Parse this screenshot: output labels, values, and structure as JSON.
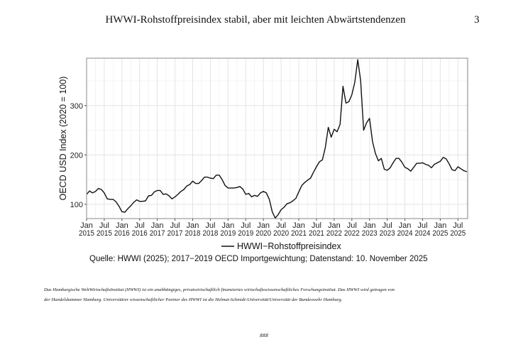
{
  "header": {
    "title": "HWWI-Rohstoffpreisindex stabil, aber mit leichten Abwärtstendenzen",
    "page_number": "3"
  },
  "chart_data": {
    "type": "line",
    "title": "",
    "xlabel": "",
    "ylabel": "OECD USD Index (2020 = 100)",
    "ylim": [
      71,
      396
    ],
    "yticks": [
      100,
      200,
      300
    ],
    "grid": true,
    "start": "Jan 2015",
    "frequency": "monthly",
    "x_tick_labels": [
      [
        "Jan",
        "2015"
      ],
      [
        "Jul",
        "2015"
      ],
      [
        "Jan",
        "2016"
      ],
      [
        "Jul",
        "2016"
      ],
      [
        "Jan",
        "2017"
      ],
      [
        "Jul",
        "2017"
      ],
      [
        "Jan",
        "2018"
      ],
      [
        "Jul",
        "2018"
      ],
      [
        "Jan",
        "2019"
      ],
      [
        "Jul",
        "2019"
      ],
      [
        "Jan",
        "2020"
      ],
      [
        "Jul",
        "2020"
      ],
      [
        "Jan",
        "2021"
      ],
      [
        "Jul",
        "2021"
      ],
      [
        "Jan",
        "2022"
      ],
      [
        "Jul",
        "2022"
      ],
      [
        "Jan",
        "2023"
      ],
      [
        "Jul",
        "2023"
      ],
      [
        "Jan",
        "2024"
      ],
      [
        "Jul",
        "2024"
      ],
      [
        "Jan",
        "2025"
      ],
      [
        "Jul",
        "2025"
      ]
    ],
    "legend": {
      "position": "bottom",
      "entries": [
        "HWWI−Rohstoffpreisindex"
      ]
    },
    "series": [
      {
        "name": "HWWI−Rohstoffpreisindex",
        "color": "#111111",
        "values": [
          120,
          127,
          123,
          126,
          132,
          130,
          123,
          111,
          110,
          110,
          105,
          96,
          85,
          84,
          91,
          97,
          104,
          109,
          106,
          106,
          107,
          117,
          118,
          125,
          128,
          128,
          120,
          121,
          117,
          111,
          115,
          120,
          126,
          130,
          137,
          140,
          147,
          142,
          142,
          148,
          155,
          155,
          153,
          152,
          159,
          159,
          150,
          138,
          133,
          133,
          133,
          134,
          136,
          131,
          120,
          122,
          115,
          118,
          116,
          123,
          126,
          123,
          110,
          85,
          72,
          79,
          89,
          94,
          101,
          103,
          107,
          112,
          125,
          138,
          144,
          149,
          153,
          165,
          176,
          186,
          190,
          215,
          256,
          236,
          252,
          247,
          262,
          339,
          305,
          308,
          322,
          347,
          393,
          350,
          250,
          265,
          274,
          227,
          203,
          188,
          193,
          171,
          169,
          174,
          184,
          193,
          193,
          185,
          175,
          172,
          167,
          175,
          183,
          183,
          184,
          181,
          179,
          174,
          181,
          184,
          187,
          195,
          192,
          182,
          170,
          168,
          176,
          172,
          168,
          166
        ]
      }
    ]
  },
  "source": "Quelle: HWWI (2025); 2017−2019 OECD Importgewichtung; Datenstand: 10. November 2025",
  "footer": {
    "line1": "Das Hamburgische WeltWirtschaftsInstitut (HWWI) ist ein unabhängiges, privatwirtschaftlich finanziertes wirtschaftswissenschaftliches Forschungsinstitut. Das HWWI wird getragen von",
    "line2": "der Handelskammer Hamburg. Universitärer wissenschaftlicher Partner des HWWI ist die Helmut-Schmidt-Universität/Universität der Bundeswehr Hamburg.",
    "end_mark": "###"
  }
}
